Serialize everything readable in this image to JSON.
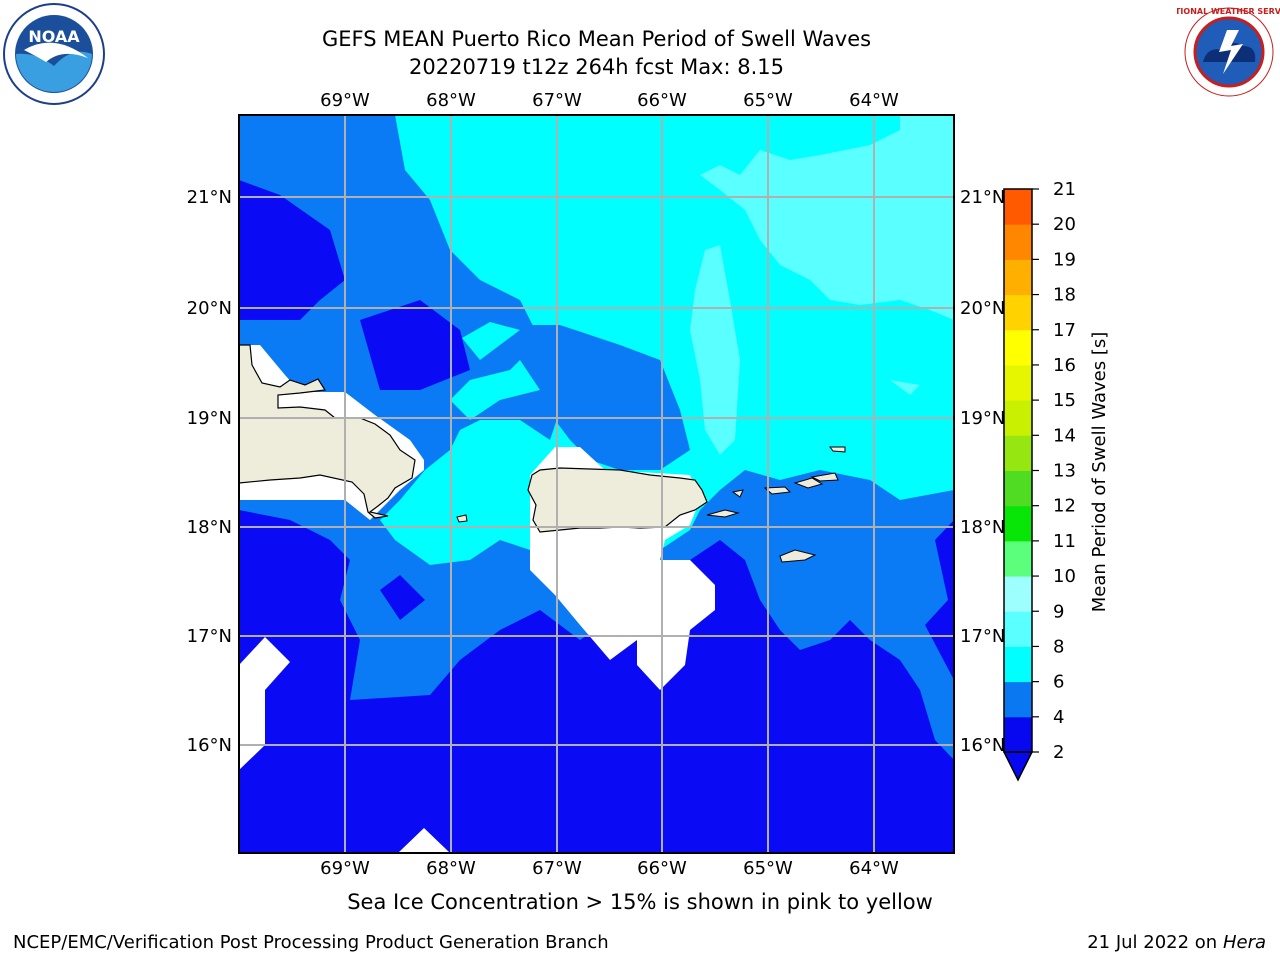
{
  "title": {
    "line1": "GEFS MEAN Puerto Rico Mean Period of Swell Waves",
    "line2": "20220719 t12z 264h fcst   Max: 8.15"
  },
  "logos": {
    "left": {
      "icon": "noaa-logo",
      "text": "NOAA"
    },
    "right": {
      "icon": "national-weather-service-logo",
      "text": "NATIONAL WEATHER SERVICE"
    }
  },
  "map": {
    "region": "Puerto Rico",
    "lon_labels": [
      "69°W",
      "68°W",
      "67°W",
      "66°W",
      "65°W",
      "64°W"
    ],
    "lat_labels": [
      "21°N",
      "20°N",
      "19°N",
      "18°N",
      "17°N",
      "16°N"
    ],
    "colors": {
      "land": "#eeeddc",
      "no_data": "#ffffff",
      "band_2_4": "#0a0af5",
      "band_4_6": "#0a7af5",
      "band_6_8": "#00ffff",
      "band_8_10": "#5affff"
    }
  },
  "colorbar": {
    "label": "Mean Period of Swell Waves [s]",
    "ticks": [
      "2",
      "4",
      "6",
      "8",
      "9",
      "10",
      "11",
      "12",
      "13",
      "14",
      "15",
      "16",
      "17",
      "18",
      "19",
      "20",
      "21"
    ],
    "colors": [
      "#0808f0",
      "#0a78f0",
      "#00ffff",
      "#5affff",
      "#9effff",
      "#5cff7c",
      "#08e608",
      "#50dc22",
      "#96e612",
      "#c8f000",
      "#e6f500",
      "#ffff00",
      "#ffd200",
      "#ffaf00",
      "#ff8700",
      "#ff5a00",
      "#ff2800",
      "#ff0000"
    ]
  },
  "caption": "Sea Ice Concentration > 15% is shown in pink to yellow",
  "footer": {
    "left": "NCEP/EMC/Verification Post Processing Product Generation Branch",
    "right_prefix": "21 Jul 2022 on ",
    "right_machine": "Hera"
  }
}
